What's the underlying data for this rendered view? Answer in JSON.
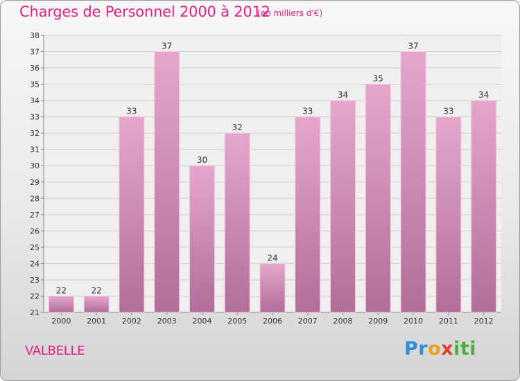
{
  "header": {
    "title": "Charges de Personnel 2000 à 2012",
    "unit": "(en milliers d'€)"
  },
  "footer": {
    "place": "VALBELLE",
    "logo": [
      "Pr",
      "o",
      "x",
      "iti"
    ]
  },
  "colors": {
    "accent": "#e0208a",
    "bar_top": "#e6a6cc",
    "bar_bottom": "#b06e98"
  },
  "chart_data": {
    "type": "bar",
    "categories": [
      "2000",
      "2001",
      "2002",
      "2003",
      "2004",
      "2005",
      "2006",
      "2007",
      "2008",
      "2009",
      "2010",
      "2011",
      "2012"
    ],
    "values": [
      22,
      22,
      33,
      37,
      30,
      32,
      24,
      33,
      34,
      35,
      37,
      33,
      34
    ],
    "title": "Charges de Personnel 2000 à 2012",
    "xlabel": "",
    "ylabel": "",
    "ylim": [
      21,
      38
    ],
    "yticks": [
      21,
      22,
      23,
      24,
      25,
      26,
      27,
      28,
      29,
      30,
      31,
      32,
      33,
      34,
      35,
      36,
      37,
      38
    ],
    "grid": true,
    "data_labels": true
  }
}
